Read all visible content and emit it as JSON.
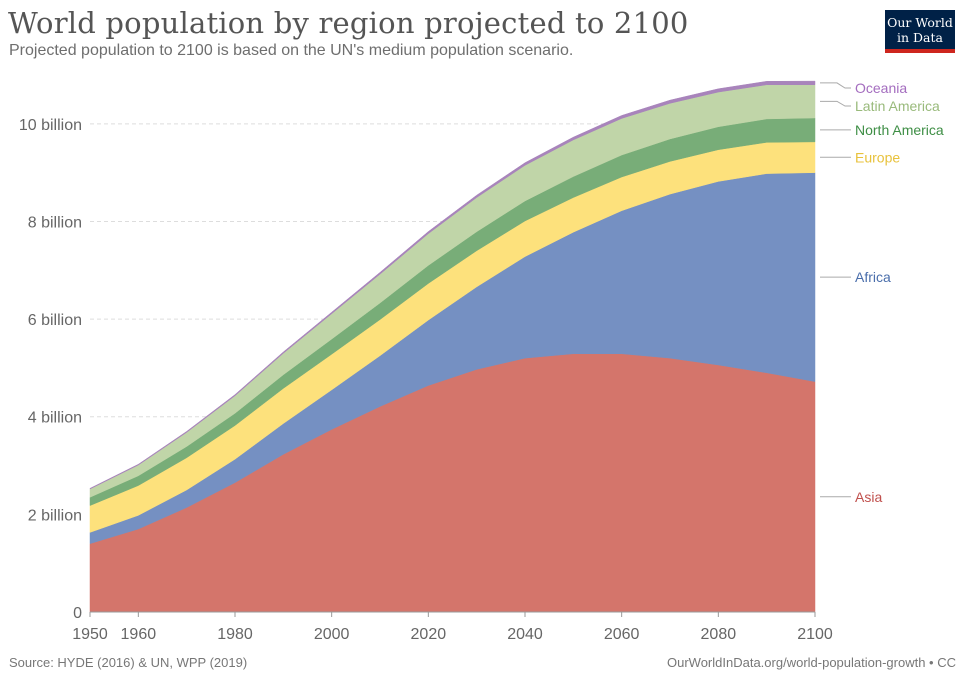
{
  "title": "World population by region projected to 2100",
  "subtitle": "Projected population to 2100 is based on the UN's medium population scenario.",
  "logo": {
    "line1": "Our World",
    "line2": "in Data"
  },
  "source": "Source: HYDE (2016) & UN, WPP (2019)",
  "credit": "OurWorldInData.org/world-population-growth • CC",
  "chart_data": {
    "type": "area",
    "stacked": true,
    "title": "World population by region projected to 2100",
    "xlabel": "",
    "ylabel": "",
    "xlim": [
      1950,
      2100
    ],
    "ylim": [
      0,
      11
    ],
    "x_ticks": [
      {
        "value": 1950,
        "label": "1950"
      },
      {
        "value": 1960,
        "label": "1960"
      },
      {
        "value": 1980,
        "label": "1980"
      },
      {
        "value": 2000,
        "label": "2000"
      },
      {
        "value": 2020,
        "label": "2020"
      },
      {
        "value": 2040,
        "label": "2040"
      },
      {
        "value": 2060,
        "label": "2060"
      },
      {
        "value": 2080,
        "label": "2080"
      },
      {
        "value": 2100,
        "label": "2100"
      }
    ],
    "y_ticks": [
      {
        "value": 0,
        "label": "0"
      },
      {
        "value": 2,
        "label": "2 billion"
      },
      {
        "value": 4,
        "label": "4 billion"
      },
      {
        "value": 6,
        "label": "6 billion"
      },
      {
        "value": 8,
        "label": "8 billion"
      },
      {
        "value": 10,
        "label": "10 billion"
      }
    ],
    "grid": true,
    "legend_position": "right",
    "x": [
      1950,
      1960,
      1970,
      1980,
      1990,
      2000,
      2010,
      2020,
      2030,
      2040,
      2050,
      2060,
      2070,
      2080,
      2090,
      2100
    ],
    "series": [
      {
        "name": "Asia",
        "color": "#d4756b",
        "label_color": "#c0504d",
        "values": [
          1.4,
          1.7,
          2.14,
          2.65,
          3.23,
          3.74,
          4.21,
          4.64,
          4.97,
          5.2,
          5.29,
          5.29,
          5.2,
          5.06,
          4.9,
          4.72
        ]
      },
      {
        "name": "Africa",
        "color": "#7590c2",
        "label_color": "#4a6eab",
        "values": [
          0.23,
          0.28,
          0.36,
          0.48,
          0.63,
          0.81,
          1.04,
          1.34,
          1.69,
          2.08,
          2.49,
          2.93,
          3.36,
          3.76,
          4.08,
          4.28
        ]
      },
      {
        "name": "Europe",
        "color": "#fde17c",
        "label_color": "#e8c23c",
        "values": [
          0.55,
          0.61,
          0.66,
          0.69,
          0.72,
          0.73,
          0.74,
          0.75,
          0.74,
          0.73,
          0.71,
          0.69,
          0.67,
          0.65,
          0.64,
          0.63
        ]
      },
      {
        "name": "North America",
        "color": "#78ad78",
        "label_color": "#3e8e45",
        "values": [
          0.17,
          0.2,
          0.23,
          0.25,
          0.28,
          0.31,
          0.34,
          0.37,
          0.39,
          0.41,
          0.43,
          0.45,
          0.46,
          0.47,
          0.48,
          0.49
        ]
      },
      {
        "name": "Latin America",
        "color": "#c0d5a8",
        "label_color": "#99ba7b",
        "values": [
          0.17,
          0.22,
          0.29,
          0.36,
          0.44,
          0.52,
          0.59,
          0.65,
          0.7,
          0.73,
          0.75,
          0.75,
          0.73,
          0.71,
          0.7,
          0.68
        ]
      },
      {
        "name": "Oceania",
        "color": "#a884bb",
        "label_color": "#a46dbf",
        "values": [
          0.013,
          0.016,
          0.019,
          0.023,
          0.027,
          0.031,
          0.037,
          0.043,
          0.048,
          0.053,
          0.057,
          0.061,
          0.065,
          0.068,
          0.071,
          0.075
        ]
      }
    ]
  }
}
